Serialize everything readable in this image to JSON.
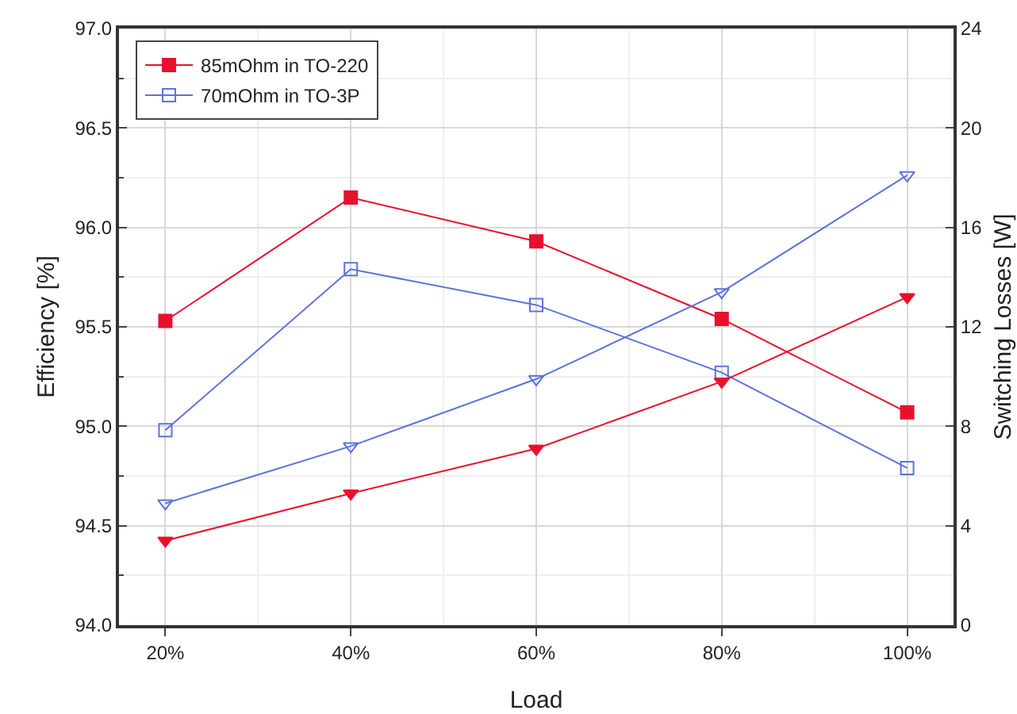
{
  "chart_data": {
    "type": "line",
    "xlabel": "Load",
    "ylabel": "Efficiency [%]",
    "y2label": "Switching Losses [W]",
    "categories": [
      "20%",
      "40%",
      "60%",
      "80%",
      "100%"
    ],
    "series": [
      {
        "name": "85mOhm in TO-220",
        "color": "#e8112d",
        "marker": "square",
        "values": [
          95.53,
          96.15,
          95.93,
          95.54,
          95.07
        ]
      },
      {
        "name": "70mOhm in TO-3P",
        "color": "#5b73d9",
        "marker": "square-open",
        "values": [
          94.98,
          95.79,
          95.61,
          95.27,
          94.79
        ]
      },
      {
        "color": "#e8112d",
        "marker": "triangle",
        "axis": "y2",
        "values": [
          3.4,
          5.3,
          7.1,
          9.8,
          13.2
        ]
      },
      {
        "color": "#5b73d9",
        "marker": "triangle-open",
        "axis": "y2",
        "values": [
          4.9,
          7.2,
          9.9,
          13.4,
          18.1
        ]
      }
    ],
    "ylim": [
      94,
      97
    ],
    "yticks": [
      {
        "value": 94,
        "label": "94.0"
      },
      {
        "value": 94.5,
        "label": "94.5"
      },
      {
        "value": 95,
        "label": "95.0"
      },
      {
        "value": 95.5,
        "label": "95.5"
      },
      {
        "value": 96,
        "label": "96.0"
      },
      {
        "value": 96.5,
        "label": "96.5"
      },
      {
        "value": 97,
        "label": "97.0"
      }
    ],
    "y2lim": [
      0,
      24
    ],
    "y2ticks": [
      0,
      4,
      8,
      12,
      16,
      20,
      24
    ],
    "grid": true,
    "legend": "top left",
    "line_style": "solid"
  }
}
